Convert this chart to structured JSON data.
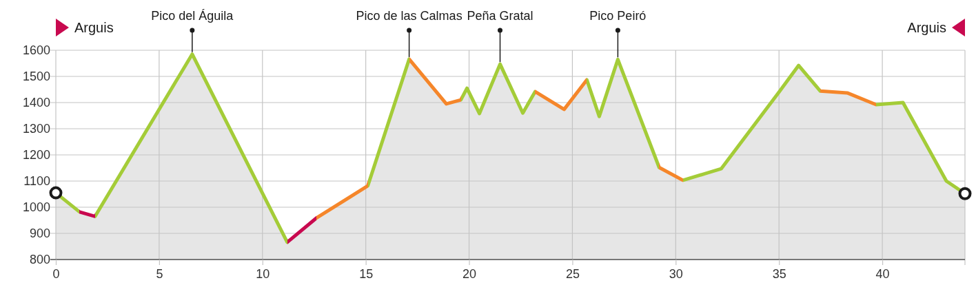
{
  "chart_data": {
    "type": "area",
    "x": [
      0,
      1.15,
      1.9,
      6.6,
      11.2,
      12.6,
      15.1,
      17.1,
      18.9,
      19.6,
      19.9,
      20.5,
      21.5,
      22.6,
      23.2,
      24.6,
      25.7,
      26.3,
      27.2,
      29.2,
      30.35,
      32.2,
      35.0,
      35.95,
      37.0,
      38.3,
      39.7,
      41.0,
      43.1,
      44
    ],
    "xlim": [
      0,
      44
    ],
    "xticks": [
      0,
      5,
      10,
      15,
      20,
      25,
      30,
      35,
      40
    ],
    "ylim": [
      800,
      1600
    ],
    "yticks": [
      800,
      900,
      1000,
      1100,
      1200,
      1300,
      1400,
      1500,
      1600
    ],
    "grid": true,
    "series": [
      {
        "color": "#e6e6e6",
        "colors": [
          "#a4cc38",
          "#c8094f",
          "#a4cc38",
          "#a4cc38",
          "#c8094f",
          "#f5862a",
          "#a4cc38",
          "#f5862a",
          "#f5862a",
          "#a4cc38",
          "#a4cc38",
          "#a4cc38",
          "#a4cc38",
          "#a4cc38",
          "#f5862a",
          "#f5862a",
          "#a4cc38",
          "#a4cc38",
          "#a4cc38",
          "#f5862a",
          "#a4cc38",
          "#a4cc38",
          "#a4cc38",
          "#a4cc38",
          "#f5862a",
          "#f5862a",
          "#a4cc38",
          "#a4cc38",
          "#a4cc38",
          "#a4cc38"
        ],
        "values": [
          1055,
          982,
          965,
          1585,
          866,
          958,
          1082,
          1566,
          1395,
          1410,
          1455,
          1358,
          1547,
          1360,
          1442,
          1374,
          1487,
          1347,
          1565,
          1152,
          1103,
          1147,
          1440,
          1542,
          1444,
          1437,
          1392,
          1400,
          1100,
          1052
        ]
      }
    ],
    "annotations": [
      "Arguis",
      {
        "text": "Pico del Águila",
        "x": 6.6,
        "y": 1585
      },
      {
        "text": "Pico de las Calmas",
        "x": 17.1,
        "y": 1566
      },
      {
        "text": "Peña Gratal",
        "x": 21.5,
        "y": 1547
      },
      {
        "text": "Pico Peiró",
        "x": 27.2,
        "y": 1565
      },
      "Arguis"
    ]
  }
}
